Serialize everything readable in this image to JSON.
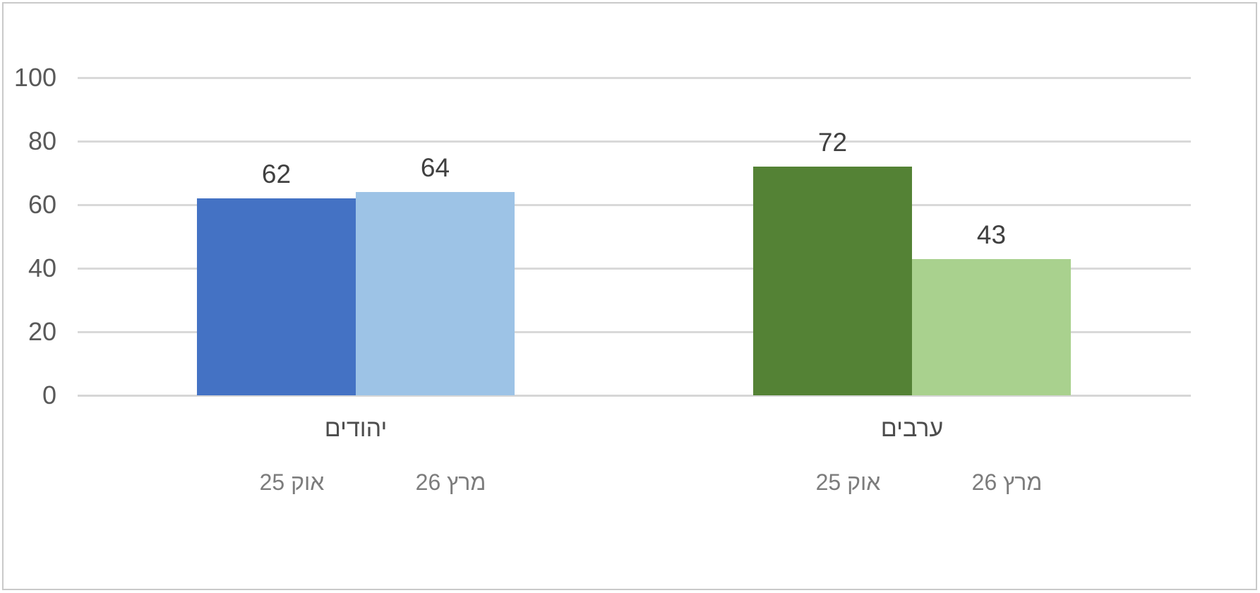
{
  "chart_data": {
    "type": "bar",
    "title": "",
    "direction": "rtl",
    "grid": true,
    "legend": "none",
    "ylim": [
      0,
      100
    ],
    "y_ticks": [
      0,
      20,
      40,
      60,
      80,
      100
    ],
    "groups": [
      {
        "label": "יהודים",
        "bars": [
          {
            "series_label": "אוק 25",
            "value": 62,
            "color": "#4472c4"
          },
          {
            "series_label": "מרץ 26",
            "value": 64,
            "color": "#9dc3e6"
          }
        ]
      },
      {
        "label": "ערבים",
        "bars": [
          {
            "series_label": "אוק 25",
            "value": 72,
            "color": "#548235"
          },
          {
            "series_label": "מרץ 26",
            "value": 43,
            "color": "#a9d18e"
          }
        ]
      }
    ],
    "colors": {
      "gridline": "#d9d9d9",
      "frame_border": "#c9c9c9",
      "axis_text": "#595959",
      "value_text": "#404040",
      "group_text": "#4d4d4d",
      "series_text": "#7c7c7c",
      "background": "#ffffff"
    }
  }
}
